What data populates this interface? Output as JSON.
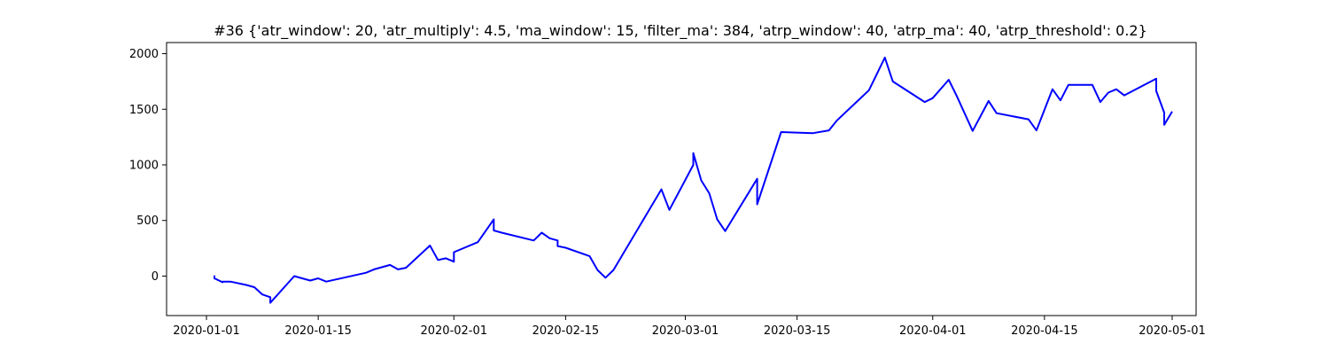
{
  "chart_data": {
    "type": "line",
    "title": "#36 {'atr_window': 20, 'atr_multiply': 4.5, 'ma_window': 15, 'filter_ma': 384, 'atrp_window': 40, 'atrp_ma': 40, 'atrp_threshold': 0.2}",
    "xlabel": "",
    "ylabel": "",
    "x_type": "date",
    "xlim": [
      "2019-12-27",
      "2020-05-04"
    ],
    "ylim": [
      -355,
      2100
    ],
    "x_ticks": [
      "2020-01-01",
      "2020-01-15",
      "2020-02-01",
      "2020-02-15",
      "2020-03-01",
      "2020-03-15",
      "2020-04-01",
      "2020-04-15",
      "2020-05-01"
    ],
    "y_ticks": [
      0,
      500,
      1000,
      1500,
      2000
    ],
    "grid": false,
    "line_color": "#0000ff",
    "series": [
      {
        "points": [
          {
            "x": "2020-01-02",
            "y": 5
          },
          {
            "x": "2020-01-02",
            "y": -20
          },
          {
            "x": "2020-01-03",
            "y": -55
          },
          {
            "x": "2020-01-03",
            "y": -50
          },
          {
            "x": "2020-01-04",
            "y": -50
          },
          {
            "x": "2020-01-06",
            "y": -80
          },
          {
            "x": "2020-01-07",
            "y": -100
          },
          {
            "x": "2020-01-08",
            "y": -165
          },
          {
            "x": "2020-01-09",
            "y": -190
          },
          {
            "x": "2020-01-09",
            "y": -240
          },
          {
            "x": "2020-01-12",
            "y": 0
          },
          {
            "x": "2020-01-14",
            "y": -40
          },
          {
            "x": "2020-01-15",
            "y": -20
          },
          {
            "x": "2020-01-16",
            "y": -50
          },
          {
            "x": "2020-01-21",
            "y": 30
          },
          {
            "x": "2020-01-22",
            "y": 60
          },
          {
            "x": "2020-01-24",
            "y": 100
          },
          {
            "x": "2020-01-25",
            "y": 60
          },
          {
            "x": "2020-01-26",
            "y": 75
          },
          {
            "x": "2020-01-29",
            "y": 275
          },
          {
            "x": "2020-01-30",
            "y": 145
          },
          {
            "x": "2020-01-31",
            "y": 160
          },
          {
            "x": "2020-02-01",
            "y": 130
          },
          {
            "x": "2020-02-01",
            "y": 215
          },
          {
            "x": "2020-02-04",
            "y": 305
          },
          {
            "x": "2020-02-06",
            "y": 510
          },
          {
            "x": "2020-02-06",
            "y": 410
          },
          {
            "x": "2020-02-07",
            "y": 390
          },
          {
            "x": "2020-02-11",
            "y": 320
          },
          {
            "x": "2020-02-12",
            "y": 390
          },
          {
            "x": "2020-02-13",
            "y": 340
          },
          {
            "x": "2020-02-14",
            "y": 320
          },
          {
            "x": "2020-02-14",
            "y": 270
          },
          {
            "x": "2020-02-15",
            "y": 255
          },
          {
            "x": "2020-02-18",
            "y": 180
          },
          {
            "x": "2020-02-19",
            "y": 55
          },
          {
            "x": "2020-02-20",
            "y": -15
          },
          {
            "x": "2020-02-21",
            "y": 55
          },
          {
            "x": "2020-02-27",
            "y": 780
          },
          {
            "x": "2020-02-28",
            "y": 595
          },
          {
            "x": "2020-03-02",
            "y": 1000
          },
          {
            "x": "2020-03-02",
            "y": 1105
          },
          {
            "x": "2020-03-03",
            "y": 860
          },
          {
            "x": "2020-03-04",
            "y": 745
          },
          {
            "x": "2020-03-05",
            "y": 510
          },
          {
            "x": "2020-03-06",
            "y": 405
          },
          {
            "x": "2020-03-10",
            "y": 875
          },
          {
            "x": "2020-03-10",
            "y": 645
          },
          {
            "x": "2020-03-13",
            "y": 1295
          },
          {
            "x": "2020-03-17",
            "y": 1285
          },
          {
            "x": "2020-03-19",
            "y": 1310
          },
          {
            "x": "2020-03-20",
            "y": 1400
          },
          {
            "x": "2020-03-24",
            "y": 1670
          },
          {
            "x": "2020-03-26",
            "y": 1965
          },
          {
            "x": "2020-03-27",
            "y": 1750
          },
          {
            "x": "2020-03-31",
            "y": 1565
          },
          {
            "x": "2020-04-01",
            "y": 1600
          },
          {
            "x": "2020-04-03",
            "y": 1765
          },
          {
            "x": "2020-04-04",
            "y": 1620
          },
          {
            "x": "2020-04-06",
            "y": 1305
          },
          {
            "x": "2020-04-08",
            "y": 1575
          },
          {
            "x": "2020-04-09",
            "y": 1465
          },
          {
            "x": "2020-04-13",
            "y": 1410
          },
          {
            "x": "2020-04-14",
            "y": 1310
          },
          {
            "x": "2020-04-16",
            "y": 1680
          },
          {
            "x": "2020-04-17",
            "y": 1580
          },
          {
            "x": "2020-04-18",
            "y": 1720
          },
          {
            "x": "2020-04-21",
            "y": 1720
          },
          {
            "x": "2020-04-22",
            "y": 1565
          },
          {
            "x": "2020-04-23",
            "y": 1650
          },
          {
            "x": "2020-04-24",
            "y": 1680
          },
          {
            "x": "2020-04-25",
            "y": 1625
          },
          {
            "x": "2020-04-29",
            "y": 1775
          },
          {
            "x": "2020-04-29",
            "y": 1665
          },
          {
            "x": "2020-04-30",
            "y": 1470
          },
          {
            "x": "2020-04-30",
            "y": 1360
          },
          {
            "x": "2020-05-01",
            "y": 1480
          }
        ]
      }
    ]
  }
}
